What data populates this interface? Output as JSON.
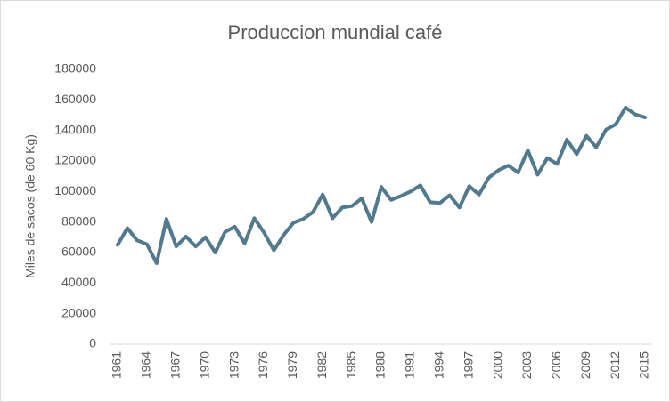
{
  "chart_data": {
    "type": "line",
    "title": "Produccion mundial café",
    "y_label": "Miles de sacos (de 60 Kg)",
    "categories": [
      "1961",
      null,
      null,
      "1964",
      null,
      null,
      "1967",
      null,
      null,
      "1970",
      null,
      null,
      "1973",
      null,
      null,
      "1976",
      null,
      null,
      "1979",
      null,
      null,
      "1982",
      null,
      null,
      "1985",
      null,
      null,
      "1988",
      null,
      null,
      "1991",
      null,
      null,
      "1994",
      null,
      null,
      "1997",
      null,
      null,
      "2000",
      null,
      null,
      "2003",
      null,
      null,
      "2006",
      null,
      null,
      "2009",
      null,
      null,
      "2012",
      null,
      null,
      "2015"
    ],
    "values": [
      65000,
      76000,
      68000,
      65500,
      53000,
      82000,
      64000,
      70500,
      64000,
      70000,
      60000,
      73500,
      77000,
      66000,
      82500,
      73000,
      61500,
      71500,
      79500,
      82000,
      86500,
      98000,
      82500,
      89500,
      90500,
      95500,
      80000,
      103000,
      94500,
      97000,
      100000,
      104000,
      93000,
      92500,
      97500,
      89500,
      103500,
      98000,
      109000,
      114000,
      117000,
      112500,
      127000,
      111000,
      122000,
      118000,
      134000,
      124500,
      136500,
      129000,
      140500,
      144000,
      155000,
      150500,
      148500
    ],
    "color": "#52798c",
    "ylim": [
      0,
      180000
    ],
    "yticks": [
      0,
      20000,
      40000,
      60000,
      80000,
      100000,
      120000,
      140000,
      160000,
      180000
    ]
  }
}
